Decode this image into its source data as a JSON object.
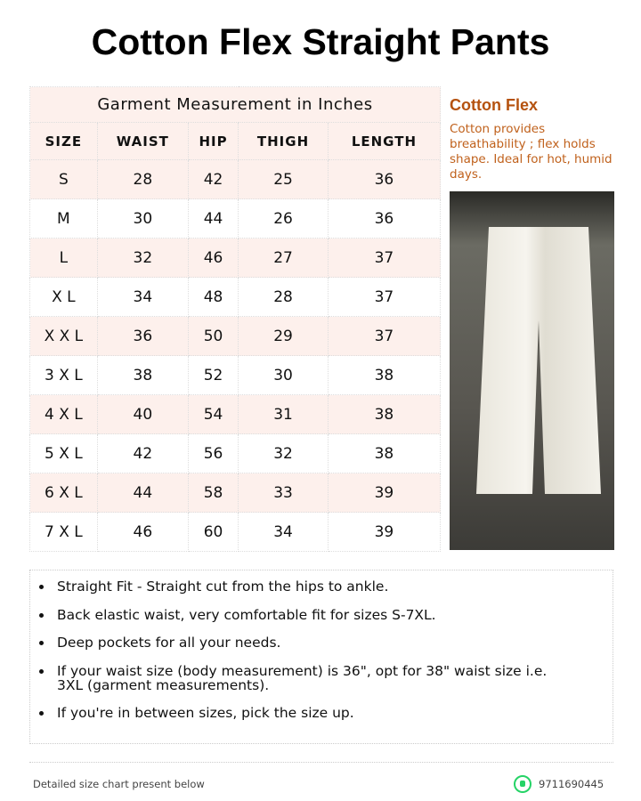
{
  "title": "Cotton Flex Straight Pants",
  "table": {
    "caption": "Garment Measurement in Inches",
    "headers": [
      "SIZE",
      "WAIST",
      "HIP",
      "THIGH",
      "LENGTH"
    ],
    "rows": [
      [
        "S",
        "28",
        "42",
        "25",
        "36"
      ],
      [
        "M",
        "30",
        "44",
        "26",
        "36"
      ],
      [
        "L",
        "32",
        "46",
        "27",
        "37"
      ],
      [
        "X L",
        "34",
        "48",
        "28",
        "37"
      ],
      [
        "X X L",
        "36",
        "50",
        "29",
        "37"
      ],
      [
        "3 X L",
        "38",
        "52",
        "30",
        "38"
      ],
      [
        "4 X L",
        "40",
        "54",
        "31",
        "38"
      ],
      [
        "5 X L",
        "42",
        "56",
        "32",
        "38"
      ],
      [
        "6 X L",
        "44",
        "58",
        "33",
        "39"
      ],
      [
        "7 X L",
        "46",
        "60",
        "34",
        "39"
      ]
    ]
  },
  "side": {
    "heading": "Cotton Flex",
    "text": "Cotton provides breathability ; flex holds shape. Ideal for hot, humid days."
  },
  "bullets": [
    "Straight Fit - Straight cut from the hips to ankle.",
    "Back elastic waist, very comfortable fit for sizes S-7XL.",
    "Deep pockets for all your needs.",
    "If your waist size (body measurement) is 36\", opt for 38\" waist size i.e. 3XL (garment measurements).",
    "If you're in between sizes, pick the size up."
  ],
  "footer": {
    "note": "Detailed size chart present below",
    "phone": "9711690445",
    "icon": "whatsapp-icon"
  },
  "colors": {
    "accent": "#b5520f",
    "row_tint": "#fdf0ec",
    "whatsapp": "#25d366"
  }
}
